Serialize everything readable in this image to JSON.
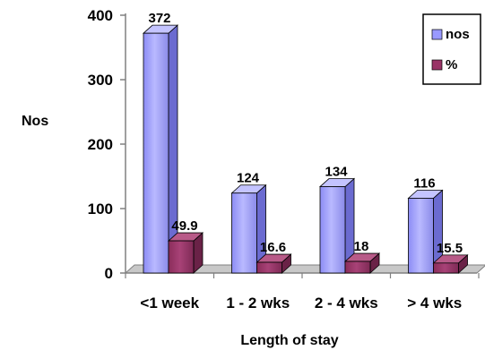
{
  "chart_data": {
    "type": "bar",
    "style": "3d-clustered-column",
    "categories": [
      "<1 week",
      "1 - 2 wks",
      "2 - 4 wks",
      "> 4 wks"
    ],
    "series": [
      {
        "name": "nos",
        "values": [
          372,
          124,
          134,
          116
        ],
        "labels": [
          "372",
          "124",
          "134",
          "116"
        ],
        "color": "#9999ff"
      },
      {
        "name": "%",
        "values": [
          49.9,
          16.6,
          18,
          15.5
        ],
        "labels": [
          "49.9",
          "16.6",
          "18",
          "15.5"
        ],
        "color": "#993366"
      }
    ],
    "xlabel": "Length of stay",
    "ylabel": "Nos",
    "ylim": [
      0,
      400
    ],
    "yticks": [
      "0",
      "100",
      "200",
      "300",
      "400"
    ],
    "grid": false,
    "legend_position": "top-right"
  }
}
